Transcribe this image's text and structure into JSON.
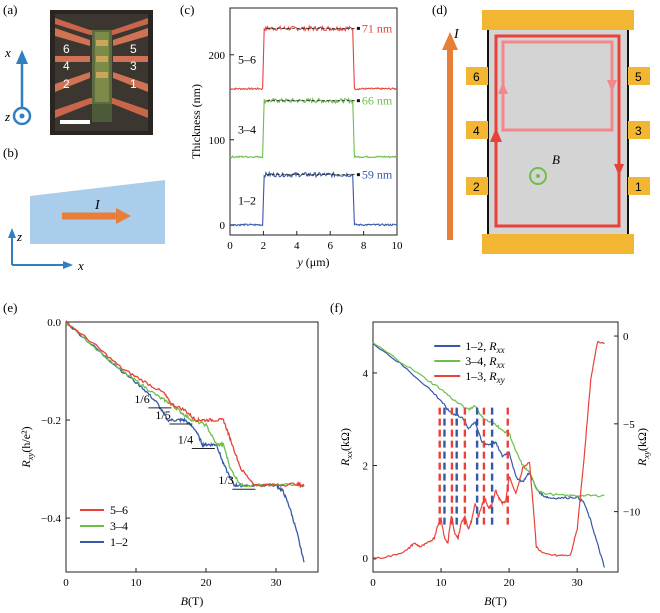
{
  "colors": {
    "red": "#e8413a",
    "green": "#6cc04a",
    "blue": "#3558a8",
    "orange": "#e77f3a",
    "gold": "#f2b632",
    "axis_blue": "#2f7fc1",
    "light_blue": "#a9cdea",
    "gray_fill": "#d4d4d4"
  },
  "panel_labels": {
    "a": "(a)",
    "b": "(b)",
    "c": "(c)",
    "d": "(d)",
    "e": "(e)",
    "f": "(f)"
  },
  "panel_a": {
    "axis_x": "x",
    "axis_z": "z",
    "contacts_left": [
      "6",
      "4",
      "2"
    ],
    "contacts_right": [
      "5",
      "3",
      "1"
    ]
  },
  "panel_b": {
    "current": "I",
    "axis_z": "z",
    "axis_x": "x"
  },
  "panel_d": {
    "current": "I",
    "field": "B",
    "contacts_left": [
      "6",
      "4",
      "2"
    ],
    "contacts_right": [
      "5",
      "3",
      "1"
    ]
  },
  "chart_data": [
    {
      "id": "c",
      "type": "line",
      "xlabel_var": "y",
      "xlabel_unit": " (μm)",
      "ylabel": "Thickness (nm)",
      "xlim": [
        0,
        10
      ],
      "ylim": [
        -12,
        255
      ],
      "xticks": [
        0,
        2,
        4,
        6,
        8,
        10
      ],
      "yticks": [
        0,
        100,
        200
      ],
      "series": [
        {
          "name": "5–6",
          "color": "red",
          "base": 160,
          "height": 71,
          "annotation": "71 nm"
        },
        {
          "name": "3–4",
          "color": "green",
          "base": 80,
          "height": 66,
          "annotation": "66 nm"
        },
        {
          "name": "1–2",
          "color": "blue",
          "base": 0,
          "height": 59,
          "annotation": "59 nm"
        }
      ],
      "step_edges": [
        2.05,
        7.35
      ]
    },
    {
      "id": "e",
      "type": "line",
      "xlabel_var": "B",
      "xlabel_unit": "(T)",
      "ylabel_var": "R",
      "ylabel_sub": "xy",
      "ylabel_unit": "(h/e²)",
      "xlim": [
        0,
        36
      ],
      "ylim": [
        -0.51,
        0.0
      ],
      "xticks": [
        0,
        10,
        20,
        30
      ],
      "yticks": [
        0.0,
        -0.2,
        -0.4
      ],
      "ytick_labels": [
        "0.0",
        "−0.2",
        "−0.4"
      ],
      "plateau_labels": [
        {
          "text": "1/6",
          "value": -0.167,
          "bx": 15.2
        },
        {
          "text": "1/5",
          "value": -0.2,
          "bx": 18.2
        },
        {
          "text": "1/4",
          "value": -0.25,
          "bx": 21.4
        },
        {
          "text": "1/3",
          "value": -0.333,
          "bx": 27.2
        }
      ],
      "legend": [
        "5–6",
        "3–4",
        "1–2"
      ],
      "series": [
        {
          "name": "5–6",
          "color": "red",
          "x": [
            0,
            4,
            8,
            11,
            14,
            15,
            17,
            18.5,
            19.5,
            21,
            22.5,
            23.5,
            25,
            27,
            30,
            33,
            34
          ],
          "y": [
            0,
            -0.045,
            -0.095,
            -0.12,
            -0.145,
            -0.167,
            -0.18,
            -0.2,
            -0.2,
            -0.2,
            -0.2,
            -0.24,
            -0.3,
            -0.333,
            -0.333,
            -0.33,
            -0.335
          ]
        },
        {
          "name": "3–4",
          "color": "green",
          "x": [
            0,
            4,
            8,
            11,
            13.5,
            15,
            16.5,
            18,
            20,
            21.5,
            22.5,
            23.5,
            25,
            27,
            30,
            33,
            34
          ],
          "y": [
            0,
            -0.05,
            -0.1,
            -0.13,
            -0.155,
            -0.167,
            -0.185,
            -0.2,
            -0.21,
            -0.25,
            -0.25,
            -0.3,
            -0.333,
            -0.333,
            -0.333,
            -0.33,
            -0.335
          ]
        },
        {
          "name": "1–2",
          "color": "blue",
          "x": [
            0,
            4,
            8,
            11,
            13,
            14.5,
            16,
            17,
            18.5,
            19.5,
            20.5,
            21.5,
            22.5,
            24,
            25,
            30,
            31,
            32,
            33,
            34
          ],
          "y": [
            0,
            -0.05,
            -0.1,
            -0.135,
            -0.165,
            -0.2,
            -0.2,
            -0.2,
            -0.22,
            -0.25,
            -0.25,
            -0.25,
            -0.29,
            -0.333,
            -0.333,
            -0.333,
            -0.345,
            -0.38,
            -0.43,
            -0.49
          ]
        }
      ]
    },
    {
      "id": "f",
      "type": "line",
      "xlabel_var": "B",
      "xlabel_unit": "(T)",
      "ylabel_left_var": "R",
      "ylabel_left_sub": "xx",
      "ylabel_left_unit": "(kΩ)",
      "ylabel_right_var": "R",
      "ylabel_right_sub": "xy",
      "ylabel_right_unit": "(kΩ)",
      "xlim": [
        0,
        36
      ],
      "ylim_left": [
        -0.3,
        5.1
      ],
      "ylim_right": [
        -13.44,
        0.8
      ],
      "xticks": [
        0,
        10,
        20,
        30
      ],
      "yticks_left": [
        0,
        2,
        4
      ],
      "yticks_right": [
        0,
        -5,
        -10
      ],
      "ytick_right_labels": [
        "0",
        "−5",
        "−10"
      ],
      "legend": [
        {
          "label": "1–2, ",
          "var": "R",
          "sub": "xx",
          "color": "blue"
        },
        {
          "label": "3–4, ",
          "var": "R",
          "sub": "xx",
          "color": "green"
        },
        {
          "label": "1–3, ",
          "var": "R",
          "sub": "xy",
          "color": "red"
        }
      ],
      "dashed_markers": [
        {
          "x": 9.8,
          "color": "red"
        },
        {
          "x": 10.5,
          "color": "blue"
        },
        {
          "x": 11.6,
          "color": "red"
        },
        {
          "x": 12.3,
          "color": "blue"
        },
        {
          "x": 13.5,
          "color": "red"
        },
        {
          "x": 15.3,
          "color": "blue"
        },
        {
          "x": 16.3,
          "color": "red"
        },
        {
          "x": 17.5,
          "color": "blue"
        },
        {
          "x": 19.8,
          "color": "red"
        }
      ],
      "series": [
        {
          "name": "1–2, Rxx",
          "color": "blue",
          "axis": "left",
          "x": [
            0,
            4,
            8,
            10,
            11,
            12,
            13,
            14,
            15,
            16,
            17,
            18,
            19,
            20,
            21,
            22,
            23,
            24,
            25,
            26,
            28,
            30,
            31,
            32,
            33,
            34
          ],
          "y": [
            4.65,
            4.2,
            3.7,
            3.4,
            3.2,
            3.1,
            3.05,
            2.8,
            2.95,
            2.5,
            2.45,
            2.5,
            2.2,
            2.3,
            1.75,
            1.65,
            1.85,
            1.5,
            1.35,
            1.3,
            1.3,
            1.32,
            1.2,
            0.8,
            0.3,
            -0.2
          ]
        },
        {
          "name": "3–4, Rxx",
          "color": "green",
          "axis": "left",
          "x": [
            0,
            4,
            8,
            10,
            12,
            14,
            15,
            16,
            17,
            18,
            19,
            20,
            21,
            22,
            23,
            24,
            25,
            28,
            30,
            32,
            34
          ],
          "y": [
            4.65,
            4.25,
            3.85,
            3.65,
            3.4,
            3.2,
            3.3,
            3.05,
            2.95,
            2.9,
            2.75,
            2.7,
            2.3,
            2.0,
            1.85,
            1.5,
            1.4,
            1.35,
            1.35,
            1.35,
            1.35
          ]
        },
        {
          "name": "1–3, Rxy",
          "color": "red",
          "axis": "right",
          "x": [
            0,
            3,
            5,
            6,
            7,
            8,
            9,
            9.5,
            10,
            10.5,
            11,
            11.5,
            12,
            12.5,
            13,
            13.5,
            14,
            14.5,
            15,
            15.5,
            16,
            16.5,
            17,
            17.5,
            18,
            18.5,
            19,
            19.5,
            20,
            21,
            22,
            23,
            23.5,
            24,
            25,
            27,
            29,
            30,
            31,
            32,
            33,
            34
          ],
          "y": [
            -12.7,
            -12.5,
            -12.2,
            -11.8,
            -12.0,
            -11.8,
            -11.5,
            -10.8,
            -10.4,
            -11.5,
            -11.8,
            -10.2,
            -11.2,
            -11.5,
            -10.6,
            -10.3,
            -11.0,
            -10.5,
            -9.5,
            -10.3,
            -9.6,
            -9.3,
            -9.8,
            -9.6,
            -8.8,
            -9.2,
            -9.5,
            -9.4,
            -8.0,
            -9.0,
            -7.5,
            -7.2,
            -9.5,
            -12.0,
            -12.4,
            -12.5,
            -12.5,
            -11.0,
            -7.0,
            -2.5,
            -0.3,
            -0.4
          ]
        }
      ]
    }
  ]
}
